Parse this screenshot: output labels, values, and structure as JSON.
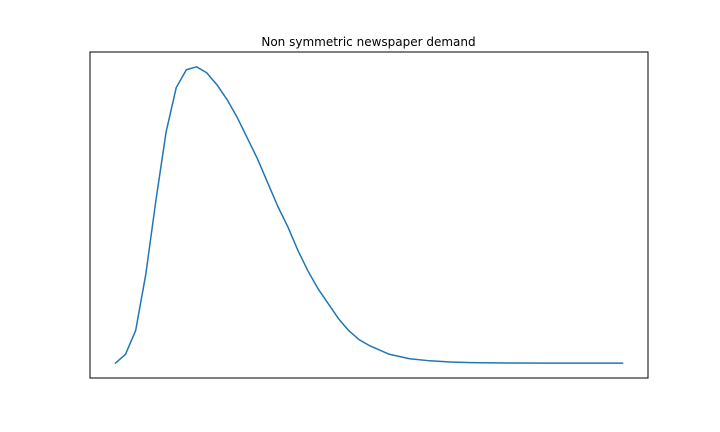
{
  "chart_data": {
    "type": "line",
    "title": "Non symmetric newspaper demand",
    "xlabel": "",
    "ylabel": "",
    "ticks_visible": false,
    "grid": false,
    "xlim": [
      -5,
      105
    ],
    "ylim": [
      -0.05,
      1.05
    ],
    "series": [
      {
        "color": "#1f77b4",
        "x": [
          0,
          2,
          4,
          6,
          8,
          10,
          12,
          14,
          16,
          18,
          20,
          22,
          24,
          26,
          28,
          30,
          32,
          34,
          36,
          38,
          40,
          42,
          44,
          46,
          48,
          50,
          54,
          58,
          62,
          66,
          70,
          75,
          80,
          85,
          90,
          95,
          100
        ],
        "y": [
          0.0,
          0.03,
          0.11,
          0.3,
          0.55,
          0.78,
          0.93,
          0.99,
          1.0,
          0.98,
          0.94,
          0.89,
          0.83,
          0.76,
          0.69,
          0.61,
          0.53,
          0.46,
          0.38,
          0.31,
          0.25,
          0.2,
          0.15,
          0.11,
          0.08,
          0.06,
          0.03,
          0.015,
          0.008,
          0.004,
          0.002,
          0.001,
          0.0005,
          0.0003,
          0.0002,
          0.0001,
          0.0
        ]
      }
    ]
  },
  "colors": {
    "line": "#1f77b4",
    "frame": "#000000"
  }
}
